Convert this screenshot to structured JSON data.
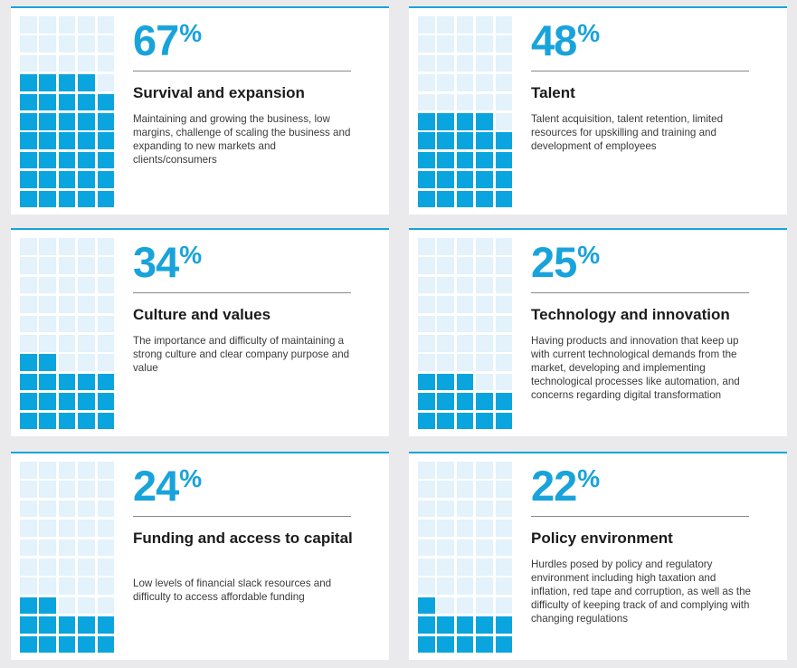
{
  "colors": {
    "accent": "#19a3db",
    "filled": "#0aa5de",
    "empty": "#e3f2fb",
    "background": "#eaeaec"
  },
  "chart_data": [
    {
      "type": "waffle",
      "value": 67,
      "percent_label": "67",
      "unit": "%",
      "title": "Survival and expansion",
      "description": "Maintaining and growing the business, low margins, challenge of scaling the business and expanding to new markets and clients/consumers"
    },
    {
      "type": "waffle",
      "value": 48,
      "percent_label": "48",
      "unit": "%",
      "title": "Talent",
      "description": "Talent acquisition, talent retention, limited resources for upskilling and training and development of employees"
    },
    {
      "type": "waffle",
      "value": 34,
      "percent_label": "34",
      "unit": "%",
      "title": "Culture and values",
      "description": "The importance and difficulty of maintaining a strong culture and clear company purpose and value"
    },
    {
      "type": "waffle",
      "value": 25,
      "percent_label": "25",
      "unit": "%",
      "title": "Technology and innovation",
      "description": "Having products and innovation that keep up with current technological demands from the market, developing and implementing technological processes like automation, and concerns regarding digital transformation"
    },
    {
      "type": "waffle",
      "value": 24,
      "percent_label": "24",
      "unit": "%",
      "title": "Funding and access to capital",
      "description": "Low levels of financial slack resources and difficulty to access affordable funding"
    },
    {
      "type": "waffle",
      "value": 22,
      "percent_label": "22",
      "unit": "%",
      "title": "Policy environment",
      "description": "Hurdles posed by policy and regulatory environment including high taxation and inflation, red tape and corruption, as well as the difficulty of keeping track of and complying with changing regulations"
    }
  ]
}
